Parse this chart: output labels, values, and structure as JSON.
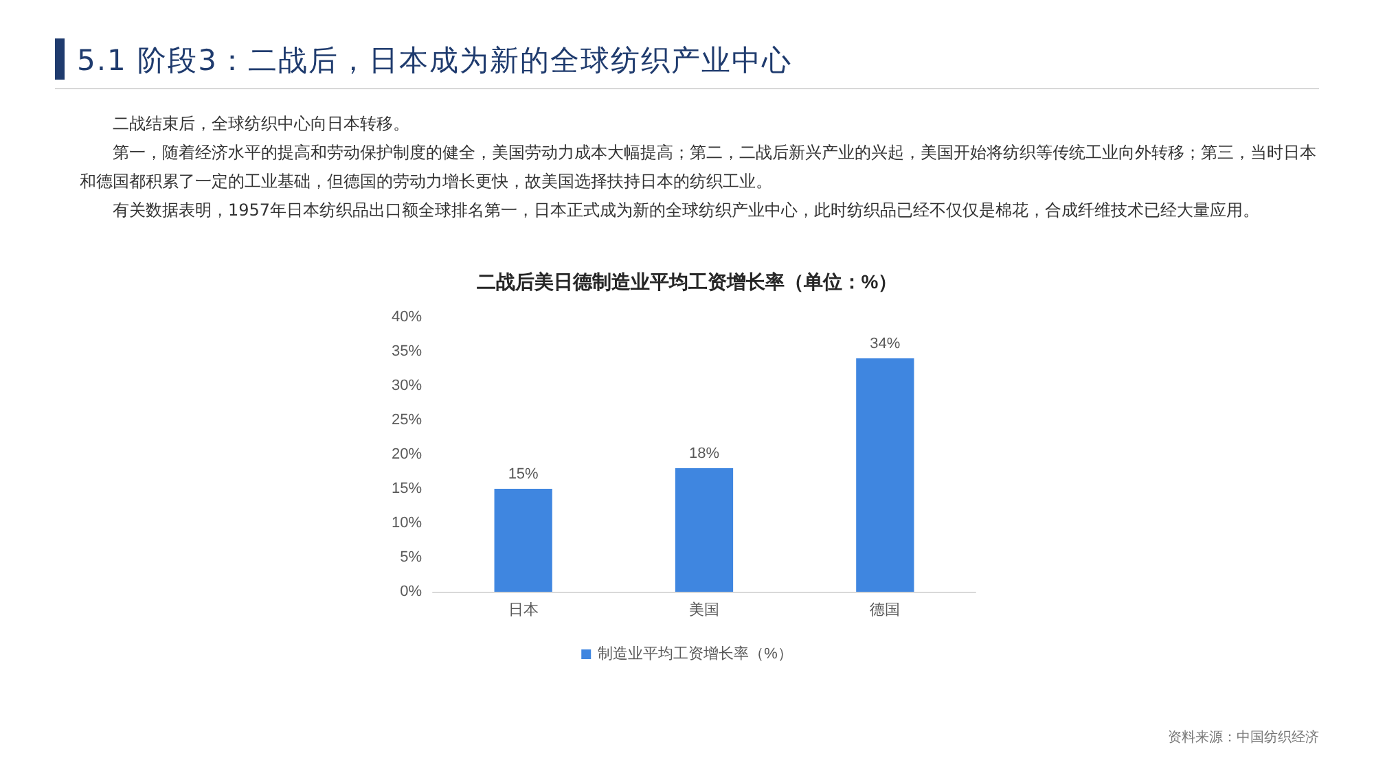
{
  "chart_data": {
    "type": "bar",
    "title": "二战后美日德制造业平均工资增长率（单位：%）",
    "annotations": [
      "5.1 阶段3：二战后，日本成为新的全球纺织产业中心",
      "二战结束后，全球纺织中心向日本转移。",
      "第一，随着经济水平的提高和劳动保护制度的健全，美国劳动力成本大幅提高；第二，二战后新兴产业的兴起，美国开始将纺织等传统工业向外转移；第三，当时日本和德国都积累了一定的工业基础，但德国的劳动力增长更快，故美国选择扶持日本的纺织工业。",
      "有关数据表明，1957年日本纺织品出口额全球排名第一，日本正式成为新的全球纺织产业中心，此时纺织品已经不仅仅是棉花，合成纤维技术已经大量应用。",
      "资料来源：中国纺织经济"
    ],
    "categories": [
      "日本",
      "美国",
      "德国"
    ],
    "series": [
      {
        "name": "制造业平均工资增长率（%）",
        "color": "#3f86e0",
        "values": [
          15,
          18,
          34
        ],
        "value_labels": [
          "15%",
          "18%",
          "34%"
        ]
      }
    ],
    "ylim": [
      0,
      40
    ],
    "yticks": [
      {
        "value": 0,
        "label": "0%"
      },
      {
        "value": 5,
        "label": "5%"
      },
      {
        "value": 10,
        "label": "10%"
      },
      {
        "value": 15,
        "label": "15%"
      },
      {
        "value": 20,
        "label": "20%"
      },
      {
        "value": 25,
        "label": "25%"
      },
      {
        "value": 30,
        "label": "30%"
      },
      {
        "value": 35,
        "label": "35%"
      },
      {
        "value": 40,
        "label": "40%"
      }
    ],
    "grid": false,
    "legend": "bottom"
  }
}
